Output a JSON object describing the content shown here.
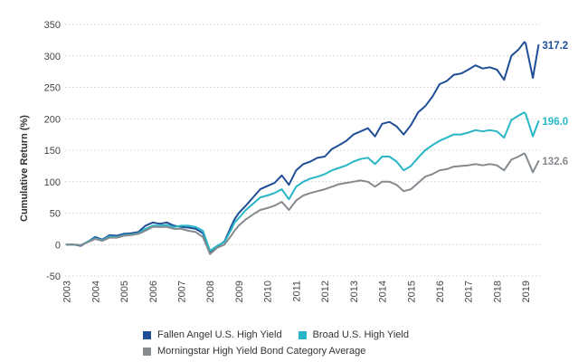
{
  "chart_data": {
    "type": "line",
    "title": "",
    "xlabel": "",
    "ylabel": "Cumulative Return (%)",
    "ylim": [
      -50,
      350
    ],
    "xlim": [
      2002.95,
      2019.5
    ],
    "y_ticks": [
      350,
      300,
      250,
      200,
      150,
      100,
      50,
      0,
      -50
    ],
    "y_tick_labels": [
      "350",
      "300",
      "250",
      "200",
      "150",
      "100",
      "50",
      "0",
      "-50"
    ],
    "x_ticks": [
      2003,
      2004,
      2005,
      2006,
      2007,
      2008,
      2009,
      2010,
      2011,
      2012,
      2013,
      2014,
      2015,
      2016,
      2017,
      2018,
      2019
    ],
    "x_tick_labels": [
      "2003",
      "2004",
      "2005",
      "2006",
      "2007",
      "2008",
      "2009",
      "2010",
      "2011",
      "2012",
      "2013",
      "2014",
      "2015",
      "2016",
      "2017",
      "2018",
      "2019"
    ],
    "grid": "horizontal dotted",
    "legend_position": "bottom",
    "series": [
      {
        "name": "Fallen Angel U.S. High Yield",
        "color": "#1f4e96",
        "end_label": "317.2",
        "x": [
          2003.0,
          2003.25,
          2003.5,
          2003.75,
          2004.0,
          2004.25,
          2004.5,
          2004.75,
          2005.0,
          2005.25,
          2005.5,
          2005.75,
          2006.0,
          2006.25,
          2006.5,
          2006.75,
          2007.0,
          2007.25,
          2007.5,
          2007.75,
          2008.0,
          2008.25,
          2008.5,
          2008.75,
          2008.85,
          2009.0,
          2009.25,
          2009.5,
          2009.75,
          2010.0,
          2010.25,
          2010.5,
          2010.75,
          2011.0,
          2011.25,
          2011.5,
          2011.75,
          2012.0,
          2012.25,
          2012.5,
          2012.75,
          2013.0,
          2013.25,
          2013.5,
          2013.75,
          2014.0,
          2014.25,
          2014.5,
          2014.75,
          2015.0,
          2015.25,
          2015.5,
          2015.75,
          2016.0,
          2016.25,
          2016.5,
          2016.75,
          2017.0,
          2017.25,
          2017.5,
          2017.75,
          2018.0,
          2018.25,
          2018.5,
          2018.75,
          2018.95,
          2019.0,
          2019.25,
          2019.45
        ],
        "y": [
          0,
          0,
          -2,
          5,
          12,
          8,
          15,
          14,
          17,
          18,
          20,
          30,
          35,
          33,
          35,
          30,
          28,
          27,
          25,
          18,
          -12,
          -3,
          5,
          30,
          40,
          50,
          62,
          75,
          88,
          93,
          98,
          110,
          95,
          118,
          128,
          132,
          138,
          140,
          152,
          158,
          165,
          175,
          180,
          185,
          172,
          192,
          195,
          188,
          175,
          190,
          210,
          220,
          235,
          255,
          260,
          270,
          272,
          278,
          285,
          280,
          282,
          278,
          262,
          300,
          310,
          322,
          320,
          265,
          317.2
        ]
      },
      {
        "name": "Broad U.S. High Yield",
        "color": "#28b6c6",
        "end_label": "196.0",
        "x": [
          2003.0,
          2003.25,
          2003.5,
          2003.75,
          2004.0,
          2004.25,
          2004.5,
          2004.75,
          2005.0,
          2005.25,
          2005.5,
          2005.75,
          2006.0,
          2006.25,
          2006.5,
          2006.75,
          2007.0,
          2007.25,
          2007.5,
          2007.75,
          2008.0,
          2008.25,
          2008.5,
          2008.75,
          2008.85,
          2009.0,
          2009.25,
          2009.5,
          2009.75,
          2010.0,
          2010.25,
          2010.5,
          2010.75,
          2011.0,
          2011.25,
          2011.5,
          2011.75,
          2012.0,
          2012.25,
          2012.5,
          2012.75,
          2013.0,
          2013.25,
          2013.5,
          2013.75,
          2014.0,
          2014.25,
          2014.5,
          2014.75,
          2015.0,
          2015.25,
          2015.5,
          2015.75,
          2016.0,
          2016.25,
          2016.5,
          2016.75,
          2017.0,
          2017.25,
          2017.5,
          2017.75,
          2018.0,
          2018.25,
          2018.5,
          2018.75,
          2018.95,
          2019.0,
          2019.25,
          2019.45
        ],
        "y": [
          0,
          0,
          -1,
          5,
          10,
          7,
          13,
          12,
          15,
          16,
          18,
          25,
          30,
          30,
          31,
          28,
          30,
          30,
          28,
          22,
          -10,
          -2,
          4,
          25,
          35,
          42,
          55,
          65,
          75,
          78,
          82,
          88,
          72,
          92,
          100,
          105,
          108,
          112,
          118,
          122,
          126,
          132,
          136,
          138,
          128,
          140,
          140,
          132,
          118,
          125,
          138,
          150,
          158,
          165,
          170,
          175,
          175,
          178,
          182,
          180,
          182,
          180,
          170,
          198,
          205,
          210,
          208,
          172,
          196.0
        ]
      },
      {
        "name": "Morningstar High Yield Bond Category Average",
        "color": "#858a8f",
        "end_label": "132.6",
        "x": [
          2003.0,
          2003.25,
          2003.5,
          2003.75,
          2004.0,
          2004.25,
          2004.5,
          2004.75,
          2005.0,
          2005.25,
          2005.5,
          2005.75,
          2006.0,
          2006.25,
          2006.5,
          2006.75,
          2007.0,
          2007.25,
          2007.5,
          2007.75,
          2008.0,
          2008.25,
          2008.5,
          2008.75,
          2008.85,
          2009.0,
          2009.25,
          2009.5,
          2009.75,
          2010.0,
          2010.25,
          2010.5,
          2010.75,
          2011.0,
          2011.25,
          2011.5,
          2011.75,
          2012.0,
          2012.25,
          2012.5,
          2012.75,
          2013.0,
          2013.25,
          2013.5,
          2013.75,
          2014.0,
          2014.25,
          2014.5,
          2014.75,
          2015.0,
          2015.25,
          2015.5,
          2015.75,
          2016.0,
          2016.25,
          2016.5,
          2016.75,
          2017.0,
          2017.25,
          2017.5,
          2017.75,
          2018.0,
          2018.25,
          2018.5,
          2018.75,
          2018.95,
          2019.0,
          2019.25,
          2019.45
        ],
        "y": [
          0,
          0,
          -1,
          4,
          9,
          6,
          11,
          11,
          14,
          15,
          17,
          22,
          28,
          28,
          28,
          25,
          25,
          22,
          20,
          12,
          -15,
          -5,
          0,
          15,
          22,
          30,
          40,
          48,
          55,
          58,
          62,
          68,
          55,
          70,
          78,
          82,
          85,
          88,
          92,
          96,
          98,
          100,
          102,
          100,
          92,
          100,
          100,
          95,
          85,
          88,
          98,
          108,
          112,
          118,
          120,
          124,
          125,
          126,
          128,
          126,
          128,
          126,
          118,
          135,
          140,
          145,
          142,
          115,
          132.6
        ]
      }
    ]
  }
}
